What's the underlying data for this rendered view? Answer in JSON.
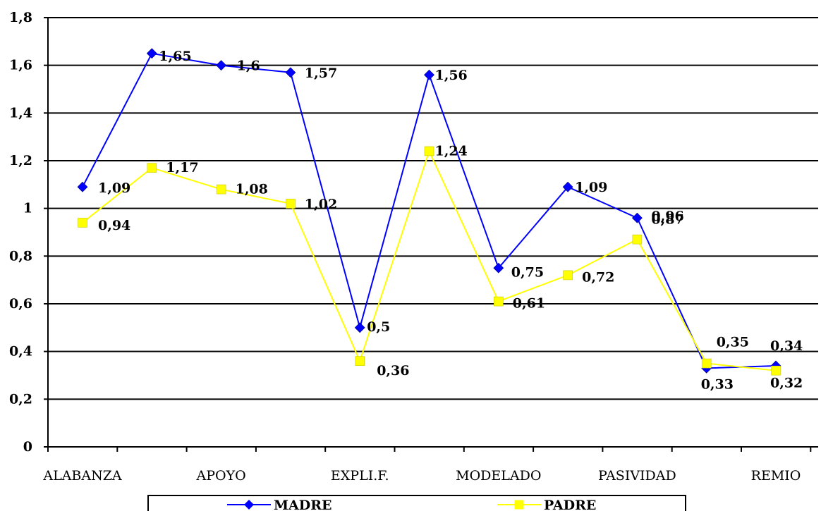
{
  "chart_data": {
    "type": "line",
    "title": "",
    "xlabel": "",
    "ylabel": "",
    "ylim": [
      0,
      1.8
    ],
    "y_ticks": [
      "0",
      "0,2",
      "0,4",
      "0,6",
      "0,8",
      "1",
      "1,2",
      "1,4",
      "1,6",
      "1,8"
    ],
    "y_tick_values": [
      0,
      0.2,
      0.4,
      0.6,
      0.8,
      1.0,
      1.2,
      1.4,
      1.6,
      1.8
    ],
    "grid": "horizontal",
    "legend_position": "bottom",
    "categories": [
      "ALABANZA",
      "",
      "APOYO",
      "",
      "EXPLI.F.",
      "",
      "MODELADO",
      "",
      "PASIVIDAD",
      "",
      "REMIO"
    ],
    "series": [
      {
        "name": "MADRE",
        "color": "#0000ff",
        "marker": "diamond",
        "values": [
          1.09,
          1.65,
          1.6,
          1.57,
          0.5,
          1.56,
          0.75,
          1.09,
          0.96,
          0.33,
          0.34
        ],
        "labels": [
          "1,09",
          "1,65",
          "1,6",
          "1,57",
          "0,5",
          "1,56",
          "0,75",
          "1,09",
          "0,96",
          "0,33",
          "0,34"
        ]
      },
      {
        "name": "PADRE",
        "color": "#ffff00",
        "marker": "square",
        "values": [
          0.94,
          1.17,
          1.08,
          1.02,
          0.36,
          1.24,
          0.61,
          0.72,
          0.87,
          0.35,
          0.32
        ],
        "labels": [
          "0,94",
          "1,17",
          "1,08",
          "1,02",
          "0,36",
          "1,24",
          "0,61",
          "0,72",
          "0,87",
          "0,35",
          "0,32"
        ]
      }
    ]
  }
}
